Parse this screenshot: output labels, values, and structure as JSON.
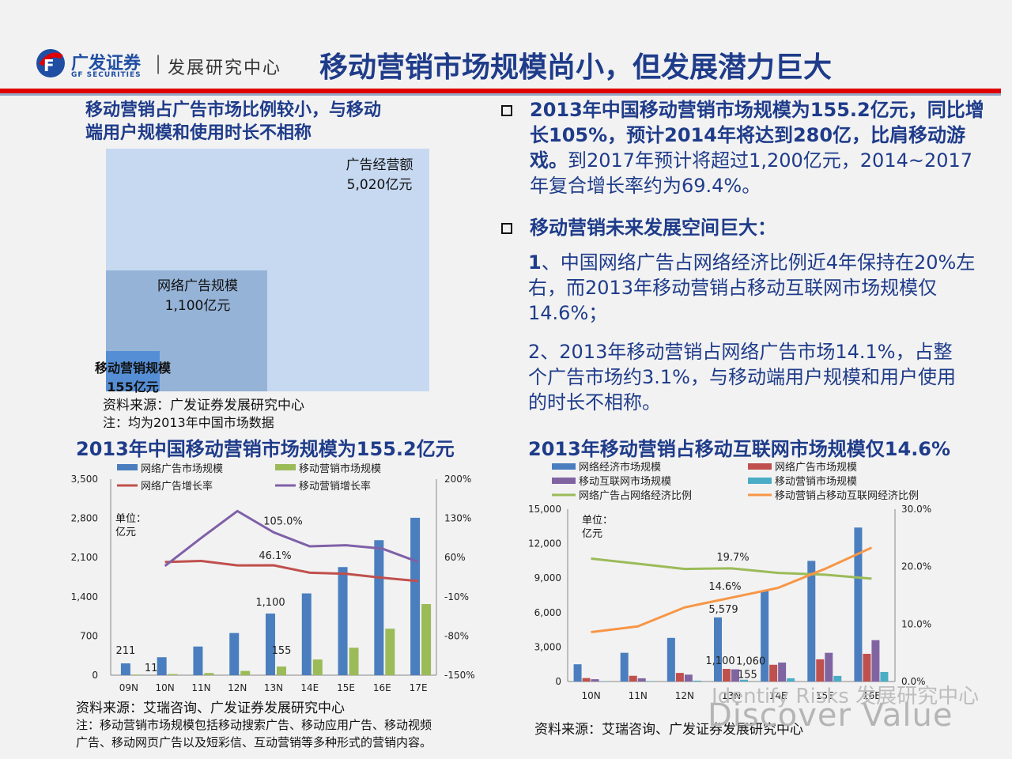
{
  "header": {
    "logo_cn": "广发证券",
    "logo_en": "GF SECURITIES",
    "separator": "|",
    "center_name": "发展研究中心",
    "title": "移动营销市场规模尚小，但发展潜力巨大"
  },
  "colors": {
    "brand_blue": "#1f3c8a",
    "header_red": "#e00000",
    "bar_blue": "#4a7ebf",
    "bar_green": "#9bbb59",
    "bar_red": "#c0504d",
    "bar_purple": "#8064a2",
    "bar_cyan": "#4bacc6",
    "line_red": "#c0504d",
    "line_purple": "#7f60a8",
    "line_green": "#9bbb59",
    "line_orange": "#f79646"
  },
  "area_chart": {
    "title_line1": "移动营销占广告市场比例较小，与移动",
    "title_line2": "端用户规模和使用时长不相称",
    "ad_label": "广告经营额",
    "ad_value": "5,020亿元",
    "online_label": "网络广告规模",
    "online_value": "1,100亿元",
    "mobile_label": "移动营销规模",
    "mobile_value": "155亿元",
    "source": "资料来源：广发证券发展研究中心",
    "note": "注：均为2013年中国市场数据"
  },
  "bullets": {
    "b1_bold": "2013年中国移动营销市场规模为155.2亿元，同比增长105%，预计2014年将达到280亿，比肩移动游戏。",
    "b1_rest": "到2017年预计将超过1,200亿元，2014~2017年复合增长率约为69.4%。",
    "b2": "移动营销未来发展空间巨大：",
    "p1_bold": "1",
    "p1_rest": "、中国网络广告占网络经济比例近4年保持在20%左右，而2013年移动营销占移动互联网市场规模仅14.6%；",
    "p2": "2、2013年移动营销占网络广告市场14.1%，占整个广告市场约3.1%，与移动端用户规模和用户使用的时长不相称。"
  },
  "chart1": {
    "title": "2013年中国移动营销市场规模为155.2亿元",
    "unit_line1": "单位：",
    "unit_line2": "亿元",
    "source": "资料来源：艾瑞咨询、广发证券发展研究中心",
    "note_line1": "注：移动营销市场规模包括移动搜索广告、移动应用广告、移动视频",
    "note_line2": "广告、移动网页广告以及短彩信、互动营销等多种形式的营销内容。"
  },
  "chart2": {
    "title": "2013年移动营销占移动互联网市场规模仅14.6%",
    "unit_line1": "单位：",
    "unit_line2": "亿元",
    "source": "资料来源：艾瑞咨询、广发证券发展研究中心"
  },
  "watermark": {
    "line1": "Identify Risks 发展研究中心",
    "line2": "Discover Value"
  },
  "chart_data": [
    {
      "type": "bar",
      "title": "2013年中国移动营销市场规模为155.2亿元",
      "categories": [
        "09N",
        "10N",
        "11N",
        "12N",
        "13N",
        "14E",
        "15E",
        "16E",
        "17E"
      ],
      "ylim_left": [
        0,
        3500
      ],
      "yticks_left": [
        "0",
        "700",
        "1,400",
        "2,100",
        "2,800",
        "3,500"
      ],
      "ylim_right": [
        -150,
        200
      ],
      "yticks_right": [
        "-150%",
        "-80%",
        "-10%",
        "60%",
        "130%",
        "200%"
      ],
      "series": [
        {
          "name": "网络广告市场规模",
          "kind": "bar",
          "axis": "left",
          "values": [
            211,
            321,
            512,
            753,
            1100,
            1460,
            1930,
            2410,
            2810
          ]
        },
        {
          "name": "移动营销市场规模",
          "kind": "bar",
          "axis": "left",
          "values": [
            11,
            20,
            39,
            76,
            155,
            280,
            490,
            830,
            1270
          ]
        },
        {
          "name": "网络广告增长率",
          "kind": "line",
          "axis": "right",
          "values": [
            null,
            52,
            54,
            46,
            46.1,
            33,
            31,
            24,
            18
          ]
        },
        {
          "name": "移动营销增长率",
          "kind": "line",
          "axis": "right",
          "values": [
            null,
            45,
            95,
            143,
            105.0,
            80,
            82,
            76,
            52
          ]
        }
      ],
      "data_labels": [
        "211",
        "11",
        "1,100",
        "155",
        "46.1%",
        "105.0%"
      ]
    },
    {
      "type": "bar",
      "title": "2013年移动营销占移动互联网市场规模仅14.6%",
      "categories": [
        "10N",
        "11N",
        "12N",
        "13N",
        "14E",
        "15E",
        "16E"
      ],
      "ylim_left": [
        0,
        15000
      ],
      "yticks_left": [
        "0",
        "3,000",
        "6,000",
        "9,000",
        "12,000",
        "15,000"
      ],
      "ylim_right": [
        0,
        30
      ],
      "yticks_right": [
        "0.0%",
        "10.0%",
        "20.0%",
        "30.0%"
      ],
      "series": [
        {
          "name": "网络经济市场规模",
          "kind": "bar",
          "axis": "left",
          "values": [
            1500,
            2500,
            3800,
            5579,
            7900,
            10500,
            13400
          ]
        },
        {
          "name": "网络广告市场规模",
          "kind": "bar",
          "axis": "left",
          "values": [
            300,
            500,
            750,
            1100,
            1460,
            1930,
            2410
          ]
        },
        {
          "name": "移动互联网市场规模",
          "kind": "bar",
          "axis": "left",
          "values": [
            200,
            280,
            600,
            1060,
            1650,
            2500,
            3600
          ]
        },
        {
          "name": "移动营销市场规模",
          "kind": "bar",
          "axis": "left",
          "values": [
            20,
            40,
            76,
            155,
            280,
            490,
            830
          ]
        },
        {
          "name": "网络广告占网络经济比例",
          "kind": "line",
          "axis": "right",
          "values": [
            21.4,
            20.5,
            19.6,
            19.7,
            18.9,
            18.6,
            17.9
          ]
        },
        {
          "name": "移动营销占移动互联网经济比例",
          "kind": "line",
          "axis": "right",
          "values": [
            8.6,
            9.6,
            12.9,
            14.6,
            16.3,
            19.6,
            23.3
          ]
        }
      ],
      "data_labels": [
        "19.7%",
        "14.6%",
        "5,579",
        "1,100",
        "1,060",
        "155"
      ]
    }
  ]
}
